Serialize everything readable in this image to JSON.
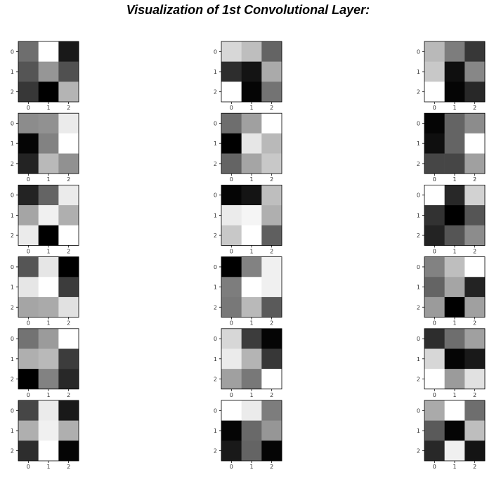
{
  "chart_data": {
    "type": "heatmap",
    "title": "Visualization of 1st Convolutional Layer:",
    "colormap": "gray",
    "value_range": [
      0,
      255
    ],
    "grid_layout": {
      "rows": 6,
      "cols": 3
    },
    "x_tick_labels": [
      "0",
      "1",
      "2"
    ],
    "y_tick_labels": [
      "0",
      "1",
      "2"
    ],
    "filters": [
      [
        [
          110,
          255,
          25
        ],
        [
          85,
          150,
          80
        ],
        [
          55,
          0,
          180
        ]
      ],
      [
        [
          215,
          190,
          100
        ],
        [
          45,
          20,
          170
        ],
        [
          255,
          5,
          115
        ]
      ],
      [
        [
          185,
          125,
          55
        ],
        [
          200,
          15,
          135
        ],
        [
          255,
          5,
          40
        ]
      ],
      [
        [
          140,
          145,
          235
        ],
        [
          5,
          130,
          255
        ],
        [
          35,
          185,
          145
        ]
      ],
      [
        [
          110,
          160,
          255
        ],
        [
          0,
          230,
          185
        ],
        [
          100,
          165,
          200
        ]
      ],
      [
        [
          5,
          100,
          140
        ],
        [
          15,
          100,
          255
        ],
        [
          70,
          70,
          160
        ]
      ],
      [
        [
          35,
          100,
          235
        ],
        [
          165,
          240,
          175
        ],
        [
          235,
          0,
          255
        ]
      ],
      [
        [
          5,
          20,
          190
        ],
        [
          235,
          245,
          175
        ],
        [
          200,
          255,
          95
        ]
      ],
      [
        [
          255,
          40,
          210
        ],
        [
          50,
          0,
          85
        ],
        [
          35,
          85,
          140
        ]
      ],
      [
        [
          85,
          230,
          0
        ],
        [
          230,
          255,
          60
        ],
        [
          165,
          170,
          225
        ]
      ],
      [
        [
          0,
          130,
          240
        ],
        [
          125,
          255,
          240
        ],
        [
          120,
          185,
          90
        ]
      ],
      [
        [
          130,
          190,
          255
        ],
        [
          100,
          165,
          35
        ],
        [
          155,
          0,
          160
        ]
      ],
      [
        [
          115,
          155,
          255
        ],
        [
          175,
          185,
          60
        ],
        [
          0,
          130,
          40
        ]
      ],
      [
        [
          215,
          60,
          5
        ],
        [
          235,
          180,
          55
        ],
        [
          160,
          120,
          255
        ]
      ],
      [
        [
          45,
          110,
          160
        ],
        [
          215,
          5,
          25
        ],
        [
          255,
          155,
          225
        ]
      ],
      [
        [
          70,
          235,
          25
        ],
        [
          175,
          240,
          175
        ],
        [
          45,
          255,
          5
        ]
      ],
      [
        [
          255,
          235,
          125
        ],
        [
          5,
          105,
          150
        ],
        [
          25,
          100,
          5
        ]
      ],
      [
        [
          170,
          255,
          110
        ],
        [
          90,
          5,
          190
        ],
        [
          40,
          240,
          20
        ]
      ]
    ]
  }
}
